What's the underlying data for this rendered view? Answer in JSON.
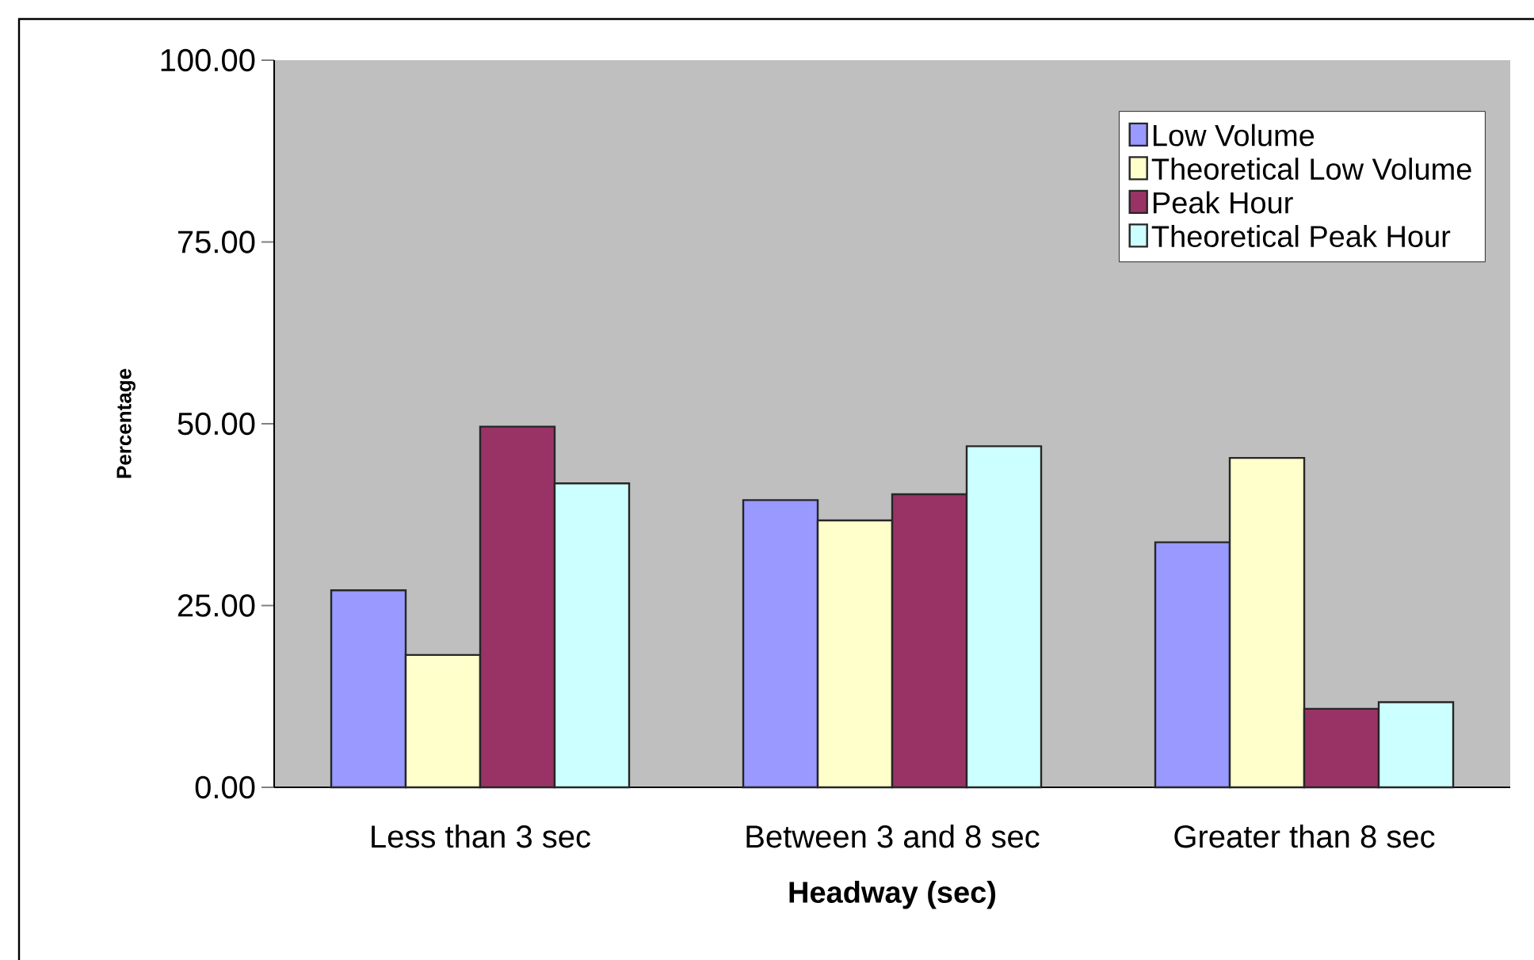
{
  "chart_data": {
    "type": "bar",
    "xlabel": "Headway (sec)",
    "ylabel": "Percentage",
    "categories": [
      "Less than 3 sec",
      "Between 3 and 8 sec",
      "Greater than 8 sec"
    ],
    "series": [
      {
        "name": "Low Volume",
        "color": "#9999ff",
        "values": [
          27.1,
          39.5,
          33.7
        ]
      },
      {
        "name": "Theoretical Low Volume",
        "color": "#ffffcc",
        "values": [
          18.2,
          36.7,
          45.3
        ]
      },
      {
        "name": "Peak Hour",
        "color": "#993366",
        "values": [
          49.6,
          40.3,
          10.8
        ]
      },
      {
        "name": "Theoretical Peak Hour",
        "color": "#ccffff",
        "values": [
          41.8,
          46.9,
          11.7
        ]
      }
    ],
    "ylim": [
      0,
      100
    ],
    "yticks": [
      {
        "value": 0,
        "label": "0.00"
      },
      {
        "value": 25,
        "label": "25.00"
      },
      {
        "value": 50,
        "label": "50.00"
      },
      {
        "value": 75,
        "label": "75.00"
      },
      {
        "value": 100,
        "label": "100.00"
      }
    ],
    "grid": false,
    "legend": "top right"
  }
}
